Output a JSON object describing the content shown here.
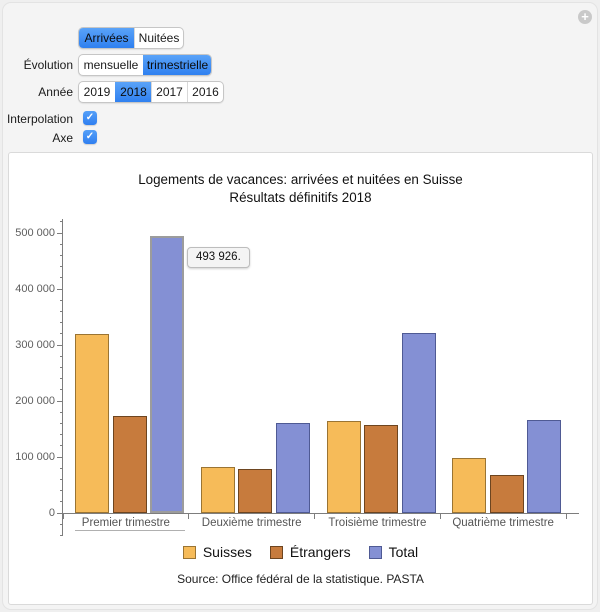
{
  "window": {
    "plus_icon_glyph": "+",
    "check_glyph": "✓",
    "accent_color": "#3e8cf4"
  },
  "controls": {
    "metric_toggle": {
      "options": [
        "Arrivées",
        "Nuitées"
      ],
      "selected": "Arrivées"
    },
    "evolution": {
      "label": "Évolution",
      "options": [
        "mensuelle",
        "trimestrielle"
      ],
      "selected": "trimestrielle"
    },
    "annee": {
      "label": "Année",
      "options": [
        "2019",
        "2018",
        "2017",
        "2016"
      ],
      "selected": "2018"
    },
    "interpolation": {
      "label": "Interpolation",
      "checked": true
    },
    "axe": {
      "label": "Axe",
      "checked": true
    }
  },
  "chart_data": {
    "type": "bar",
    "title": "Logements de vacances: arrivées et nuitées en Suisse",
    "subtitle": "Résultats définitifs 2018",
    "categories": [
      "Premier trimestre",
      "Deuxième trimestre",
      "Troisième trimestre",
      "Quatrième trimestre"
    ],
    "series": [
      {
        "name": "Suisses",
        "color": "#f6bb59",
        "edge": "#9a7433",
        "values": [
          320500,
          82500,
          164000,
          99000
        ]
      },
      {
        "name": "Étrangers",
        "color": "#c77b3d",
        "edge": "#6d4520",
        "values": [
          173426,
          78000,
          157500,
          67000
        ]
      },
      {
        "name": "Total",
        "color": "#8490d4",
        "edge": "#4f5a94",
        "values": [
          493926,
          160500,
          321500,
          166000
        ]
      }
    ],
    "ylim": [
      0,
      500000
    ],
    "ytick_step": 100000,
    "minor_tick_step": 20000,
    "ytick_labels": [
      "0",
      "100 000",
      "200 000",
      "300 000",
      "400 000",
      "500 000"
    ],
    "grid": false,
    "legend_position": "bottom",
    "tooltip": {
      "text": "493 926.",
      "series": "Total",
      "category": "Premier trimestre"
    },
    "source": "Source: Office fédéral de la statistique. PASTA"
  }
}
